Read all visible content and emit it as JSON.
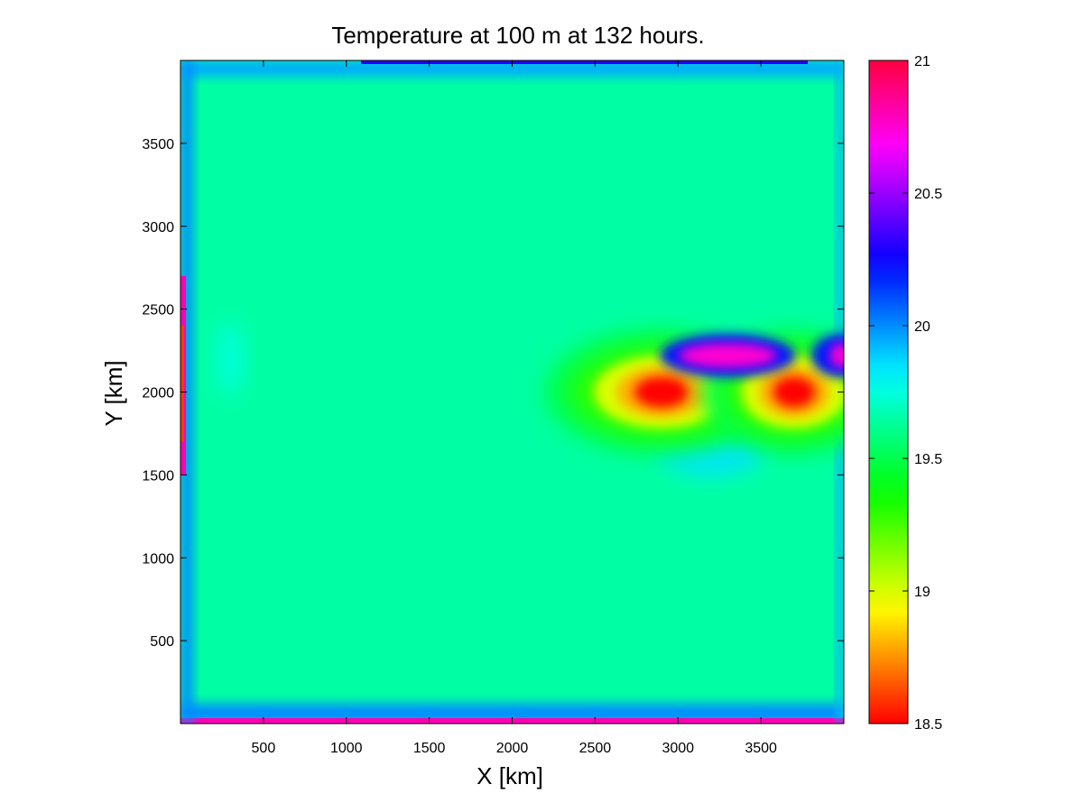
{
  "chart_data": {
    "type": "heatmap",
    "title": "Temperature at 100 m at 132 hours.",
    "xlabel": "X [km]",
    "ylabel": "Y [km]",
    "xlim": [
      0,
      4000
    ],
    "ylim": [
      0,
      4000
    ],
    "x_ticks": [
      500,
      1000,
      1500,
      2000,
      2500,
      3000,
      3500
    ],
    "y_ticks": [
      500,
      1000,
      1500,
      2000,
      2500,
      3000,
      3500
    ],
    "colorbar": {
      "min": 18.5,
      "max": 21,
      "ticks": [
        18.5,
        19,
        19.5,
        20,
        20.5,
        21
      ],
      "colormap": "hsv"
    },
    "background_value": 19.65,
    "features": [
      {
        "kind": "warm-core",
        "x": 2900,
        "y": 2000,
        "value": 18.5
      },
      {
        "kind": "warm-core",
        "x": 3700,
        "y": 2000,
        "value": 18.55
      },
      {
        "kind": "cool-lobe",
        "x": 3300,
        "y": 2220,
        "value": 20.75
      },
      {
        "kind": "cool-lobe",
        "x": 3980,
        "y": 2220,
        "value": 20.75
      },
      {
        "kind": "boundary",
        "edge": "bottom",
        "value": 20.8
      },
      {
        "kind": "boundary",
        "edge": "top",
        "value": 20.3
      },
      {
        "kind": "boundary",
        "edge": "left",
        "value": 20.3
      }
    ]
  }
}
